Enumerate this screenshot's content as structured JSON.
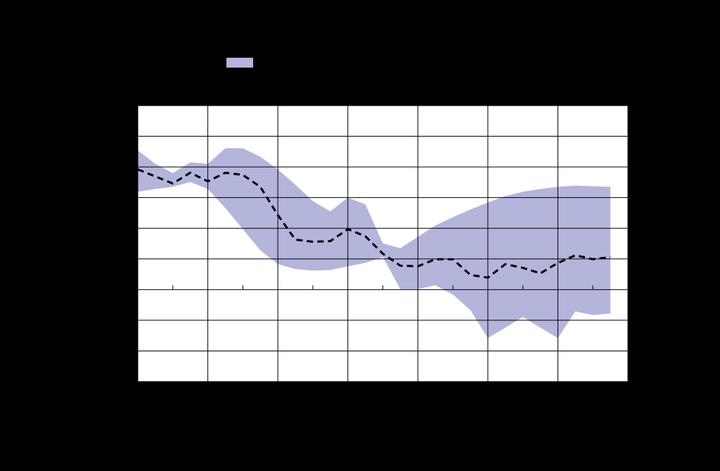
{
  "chart_data": {
    "type": "line",
    "x": [
      0,
      2,
      4,
      6,
      8,
      10,
      12,
      14,
      16,
      18,
      20,
      22,
      24,
      26,
      28,
      30,
      32,
      34,
      36,
      38,
      40,
      42,
      44,
      46,
      48,
      50,
      52,
      54
    ],
    "series": [
      {
        "color": "#b3b5db",
        "upper": [
          4.54,
          4.1,
          3.8,
          4.15,
          4.1,
          4.61,
          4.61,
          4.33,
          3.92,
          3.42,
          2.89,
          2.55,
          3.0,
          2.78,
          1.51,
          1.35,
          1.72,
          2.09,
          2.36,
          2.61,
          2.84,
          3.05,
          3.19,
          3.28,
          3.35,
          3.39,
          3.37,
          3.35
        ],
        "lower": [
          3.19,
          3.28,
          3.35,
          3.51,
          3.28,
          2.66,
          1.97,
          1.28,
          0.83,
          0.67,
          0.62,
          0.64,
          0.76,
          0.87,
          1.06,
          0.02,
          0.02,
          0.14,
          -0.16,
          -0.67,
          -1.58,
          -1.24,
          -0.89,
          -1.24,
          -1.58,
          -0.71,
          -0.83,
          -0.78
        ]
      },
      {
        "color": "#000000",
        "dashed": true,
        "values": [
          3.92,
          3.69,
          3.46,
          3.81,
          3.53,
          3.81,
          3.74,
          3.35,
          2.43,
          1.63,
          1.56,
          1.58,
          1.97,
          1.74,
          1.17,
          0.78,
          0.76,
          0.99,
          0.99,
          0.48,
          0.39,
          0.83,
          0.71,
          0.53,
          0.87,
          1.12,
          0.99,
          1.06
        ]
      }
    ],
    "xlim": [
      0,
      56
    ],
    "xgrid": [
      0,
      8,
      16,
      24,
      32,
      40,
      48,
      56
    ],
    "xticks": [
      4,
      12,
      20,
      28,
      36,
      44,
      52
    ],
    "ylim": [
      -3,
      6
    ],
    "yticks": [
      -3,
      -2,
      -1,
      0,
      1,
      2,
      3,
      4,
      5,
      6
    ],
    "grid": true
  }
}
